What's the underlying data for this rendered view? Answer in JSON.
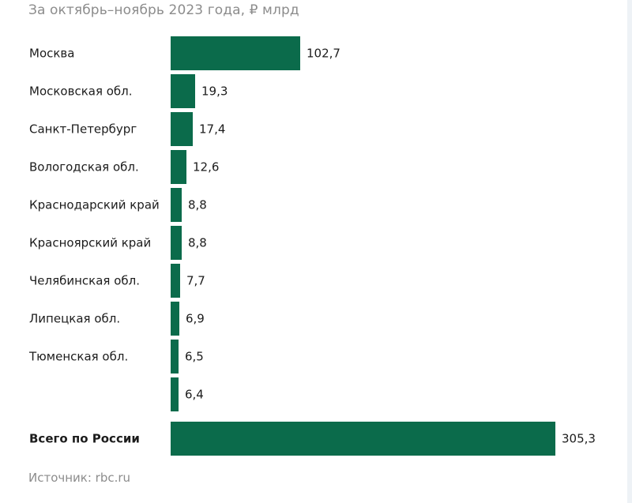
{
  "subtitle": "За октябрь–ноябрь 2023 года, ₽ млрд",
  "source": "Источник: rbc.ru",
  "colors": {
    "bar": "#0b6b4b",
    "text": "#1c1c1c",
    "muted": "#8c8c8c"
  },
  "chart_data": {
    "type": "bar",
    "orientation": "horizontal",
    "title": "За октябрь–ноябрь 2023 года, ₽ млрд",
    "xlabel": "",
    "ylabel": "",
    "xlim": [
      0,
      305.3
    ],
    "grid": false,
    "categories": [
      "Москва",
      "Московская обл.",
      "Санкт-Петербург",
      "Вологодская обл.",
      "Краснодарский край",
      "Красноярский край",
      "Челябинская обл.",
      "Липецкая обл.",
      "Тюменская обл.",
      "",
      "Всего по России"
    ],
    "values": [
      102.7,
      19.3,
      17.4,
      12.6,
      8.8,
      8.8,
      7.7,
      6.9,
      6.5,
      6.4,
      305.3
    ],
    "value_labels": [
      "102,7",
      "19,3",
      "17,4",
      "12,6",
      "8,8",
      "8,8",
      "7,7",
      "6,9",
      "6,5",
      "6,4",
      "305,3"
    ],
    "highlight": [
      false,
      false,
      false,
      false,
      false,
      false,
      false,
      false,
      false,
      false,
      true
    ]
  }
}
